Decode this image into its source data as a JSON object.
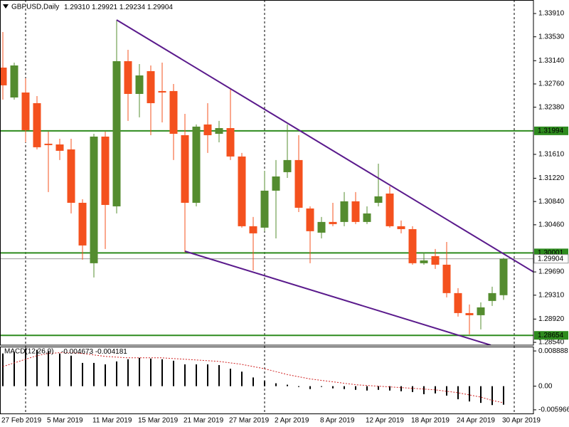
{
  "chart_data": [
    {
      "type": "candlestick",
      "title": "GBPUSD,Daily",
      "ohlc_labels": [
        "1.29310",
        "1.29921",
        "1.29234",
        "1.29904"
      ],
      "categories": [
        "27 Feb 2019",
        null,
        null,
        null,
        "5 Mar 2019",
        null,
        null,
        null,
        "11 Mar 2019",
        null,
        null,
        null,
        "15 Mar 2019",
        null,
        null,
        null,
        "21 Mar 2019",
        null,
        null,
        null,
        "27 Mar 2019",
        null,
        null,
        null,
        "2 Apr 2019",
        null,
        null,
        null,
        "8 Apr 2019",
        null,
        null,
        null,
        "12 Apr 2019",
        null,
        null,
        null,
        "18 Apr 2019",
        null,
        null,
        null,
        "24 Apr 2019",
        null,
        null,
        null,
        "30 Apr 2019"
      ],
      "open": [
        1.33027,
        1.32539,
        1.3262,
        1.32446,
        1.31784,
        1.31772,
        1.31691,
        1.30819,
        1.29832,
        1.319,
        1.30761,
        1.33132,
        1.32597,
        1.32969,
        1.32644,
        1.32644,
        1.31923,
        1.30819,
        1.32098,
        1.31946,
        1.32039,
        1.31575,
        1.30436,
        1.30413,
        1.31017,
        1.31319,
        1.31517,
        1.30726,
        1.30331,
        1.30506,
        1.30506,
        1.30843,
        1.30506,
        1.30819,
        1.3097,
        1.30436,
        1.30389,
        1.29832,
        1.29948,
        1.29808,
        1.29344,
        1.29018,
        1.28983,
        1.29216,
        1.2931
      ],
      "high": [
        1.33608,
        1.33108,
        1.32853,
        1.32562,
        1.31981,
        1.31865,
        1.31865,
        1.30877,
        1.31946,
        1.31981,
        1.33806,
        1.33318,
        1.33085,
        1.33062,
        1.33108,
        1.3276,
        1.32272,
        1.32098,
        1.32446,
        1.32156,
        1.32679,
        1.31633,
        1.30587,
        1.31342,
        1.31517,
        1.32098,
        1.31923,
        1.30761,
        1.30587,
        1.30819,
        1.30994,
        1.30994,
        1.30761,
        1.31458,
        1.31087,
        1.30529,
        1.30436,
        1.30006,
        1.30064,
        1.3018,
        1.29425,
        1.29158,
        1.29193,
        1.29448,
        1.29921
      ],
      "low": [
        1.32504,
        1.32504,
        1.31807,
        1.31691,
        1.30994,
        1.31517,
        1.30645,
        1.2989,
        1.29599,
        1.30064,
        1.30645,
        1.32156,
        1.32214,
        1.31923,
        1.32132,
        1.31517,
        1.30006,
        1.30761,
        1.31633,
        1.31807,
        1.31517,
        1.30413,
        1.29715,
        1.30355,
        1.30238,
        1.31226,
        1.30668,
        1.29832,
        1.30238,
        1.30436,
        1.30436,
        1.30471,
        1.30471,
        1.30761,
        1.30413,
        1.3032,
        1.29808,
        1.29808,
        1.29739,
        1.29274,
        1.2896,
        1.2867,
        1.28751,
        1.29134,
        1.29234
      ],
      "close": [
        1.32737,
        1.33062,
        1.32005,
        1.31726,
        1.31761,
        1.31668,
        1.30819,
        1.30122,
        1.319,
        1.30784,
        1.33132,
        1.32597,
        1.32899,
        1.32446,
        1.3262,
        1.31946,
        1.30819,
        1.32063,
        1.31923,
        1.32039,
        1.31575,
        1.30436,
        1.3032,
        1.31017,
        1.31249,
        1.31517,
        1.30738,
        1.30355,
        1.30506,
        1.30471,
        1.30843,
        1.30506,
        1.30645,
        1.30924,
        1.30436,
        1.30389,
        1.29832,
        1.29878,
        1.29808,
        1.29344,
        1.29018,
        1.28983,
        1.29111,
        1.29344,
        1.29904
      ],
      "up_color": "#548c2f",
      "down_color": "#f4511e",
      "ylim": [
        1.28494,
        1.34131
      ],
      "yticks": [
        {
          "value": 1.3391,
          "label": "1.33910"
        },
        {
          "value": 1.3353,
          "label": "1.33530"
        },
        {
          "value": 1.3314,
          "label": "1.33140"
        },
        {
          "value": 1.3276,
          "label": "1.32760"
        },
        {
          "value": 1.3238,
          "label": "1.32380"
        },
        {
          "value": 1.3161,
          "label": "1.31610"
        },
        {
          "value": 1.3122,
          "label": "1.31220"
        },
        {
          "value": 1.3084,
          "label": "1.30840"
        },
        {
          "value": 1.3046,
          "label": "1.30460"
        },
        {
          "value": 1.2969,
          "label": "1.29690"
        },
        {
          "value": 1.2931,
          "label": "1.29310"
        },
        {
          "value": 1.2892,
          "label": "1.28920"
        },
        {
          "value": 1.2854,
          "label": "1.28540"
        }
      ],
      "levels": [
        {
          "value": 1.31994,
          "color": "#2e8b1e"
        },
        {
          "value": 1.30001,
          "color": "#2e8b1e"
        },
        {
          "value": 1.28654,
          "color": "#2e8b1e"
        }
      ]
    },
    {
      "type": "macd",
      "title": "MACD(12,26,9)",
      "series": [
        {
          "name": "MACD",
          "color": "#000000",
          "values": [
            0.00825,
            0.00862,
            0.00954,
            0.00917,
            0.0088,
            0.00825,
            0.0077,
            0.00587,
            0.00587,
            0.0055,
            0.00624,
            0.00679,
            0.00715,
            0.00697,
            0.00679,
            0.00642,
            0.0055,
            0.0055,
            0.0055,
            0.00532,
            0.0044,
            0.00367,
            0.0022,
            0.00128,
            0.00073,
            0.00037,
            -0.0002,
            -0.00073,
            -0.00018,
            -0.00055,
            -0.00073,
            -0.00092,
            -0.0011,
            -0.00092,
            -0.0011,
            -0.00128,
            -0.00147,
            -0.00202,
            -0.00183,
            -0.00238,
            -0.0033,
            -0.00385,
            -0.00422,
            -0.00477,
            -0.004673
          ]
        },
        {
          "name": "Signal",
          "color": "#d02020",
          "values": [
            0.00495,
            0.00587,
            0.00679,
            0.0077,
            0.00825,
            0.00844,
            0.00844,
            0.00825,
            0.00789,
            0.00752,
            0.00733,
            0.00715,
            0.00715,
            0.00715,
            0.00715,
            0.00697,
            0.00679,
            0.0066,
            0.00642,
            0.00624,
            0.00587,
            0.0055,
            0.00495,
            0.0044,
            0.00367,
            0.00293,
            0.00238,
            0.00183,
            0.00147,
            0.0011,
            0.00073,
            0.00037,
            0.00018,
            0,
            -0.00018,
            -0.00037,
            -0.00055,
            -0.00073,
            -0.00092,
            -0.00128,
            -0.00165,
            -0.0022,
            -0.00275,
            -0.0036,
            -0.004181
          ]
        }
      ],
      "ylim": [
        -0.007066,
        0.009988
      ],
      "yticks": [
        0.008888,
        {
          "value": 0,
          "label": "0.00"
        },
        -0.005966
      ]
    }
  ]
}
